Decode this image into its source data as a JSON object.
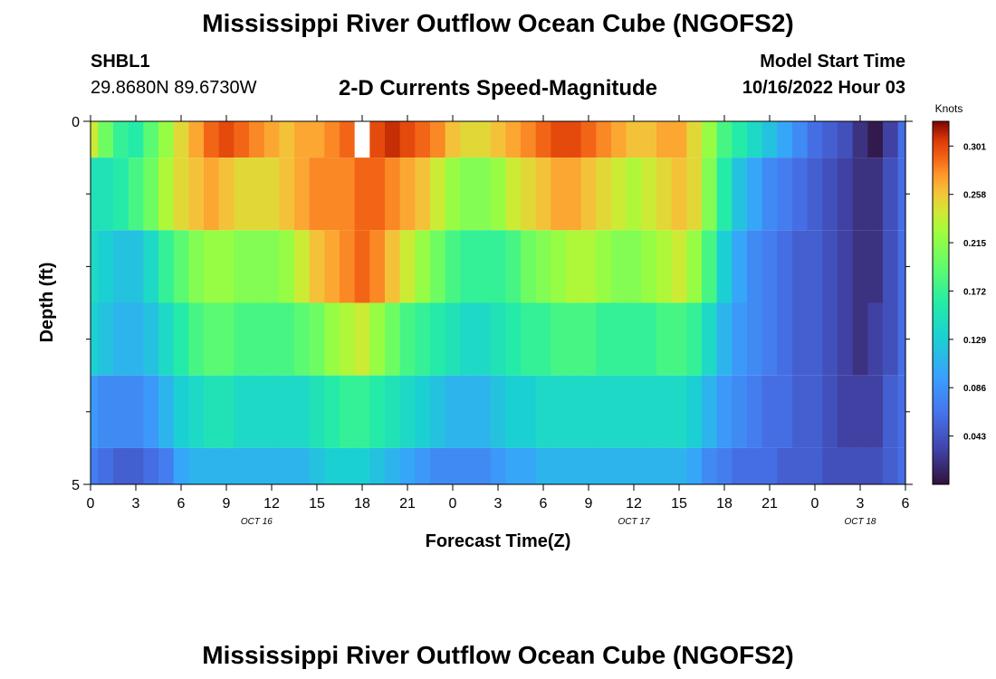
{
  "title": "Mississippi River Outflow Ocean Cube (NGOFS2)",
  "title_repeat": "Mississippi River Outflow Ocean Cube (NGOFS2)",
  "station": {
    "id": "SHBL1",
    "coords": "29.8680N  89.6730W"
  },
  "subtitle": "2-D Currents Speed-Magnitude",
  "model_start": {
    "label": "Model Start Time",
    "value": "10/16/2022 Hour 03"
  },
  "chart_data": {
    "type": "heatmap",
    "xlabel": "Forecast Time(Z)",
    "ylabel": "Depth (ft)",
    "x_tick_labels": [
      "0",
      "3",
      "6",
      "9",
      "12",
      "15",
      "18",
      "21",
      "0",
      "3",
      "6",
      "9",
      "12",
      "15",
      "18",
      "21",
      "0",
      "3",
      "6"
    ],
    "x_range_hours": [
      0,
      54
    ],
    "date_labels": [
      {
        "label": "OCT 16",
        "hour": 11
      },
      {
        "label": "OCT 17",
        "hour": 36
      },
      {
        "label": "OCT 18",
        "hour": 51
      }
    ],
    "y_tick_labels": [
      "0",
      "5"
    ],
    "ylim": [
      0,
      5
    ],
    "depth_bands": [
      0,
      0.5,
      1.5,
      2.5,
      3.5,
      4.5,
      5
    ],
    "colorbar": {
      "title": "Knots",
      "ticks": [
        "0.301",
        "0.258",
        "0.215",
        "0.172",
        "0.129",
        "0.086",
        "0.043"
      ],
      "range": [
        0,
        0.323
      ]
    },
    "time_hours": [
      0,
      1,
      2,
      3,
      4,
      5,
      6,
      7,
      8,
      9,
      10,
      11,
      12,
      13,
      14,
      15,
      16,
      17,
      18,
      19,
      20,
      21,
      22,
      23,
      24,
      25,
      26,
      27,
      28,
      29,
      30,
      31,
      32,
      33,
      34,
      35,
      36,
      37,
      38,
      39,
      40,
      41,
      42,
      43,
      44,
      45,
      46,
      47,
      48,
      49,
      50,
      51,
      52,
      53,
      54
    ],
    "speed_knots": [
      [
        0.24,
        0.2,
        0.17,
        0.16,
        0.19,
        0.22,
        0.25,
        0.27,
        0.29,
        0.3,
        0.29,
        0.28,
        0.27,
        0.26,
        0.27,
        0.27,
        0.28,
        0.29,
        null,
        0.3,
        0.31,
        0.3,
        0.29,
        0.28,
        0.26,
        0.25,
        0.25,
        0.26,
        0.27,
        0.28,
        0.29,
        0.3,
        0.3,
        0.29,
        0.28,
        0.27,
        0.26,
        0.26,
        0.27,
        0.27,
        0.25,
        0.22,
        0.18,
        0.16,
        0.14,
        0.12,
        0.1,
        0.08,
        0.06,
        0.05,
        0.04,
        0.02,
        0.005,
        0.03,
        0.06
      ],
      [
        0.15,
        0.15,
        0.16,
        0.18,
        0.2,
        0.23,
        0.25,
        0.26,
        0.27,
        0.26,
        0.25,
        0.25,
        0.25,
        0.26,
        0.27,
        0.28,
        0.28,
        0.28,
        0.29,
        0.29,
        0.28,
        0.27,
        0.26,
        0.24,
        0.22,
        0.21,
        0.21,
        0.22,
        0.24,
        0.25,
        0.26,
        0.27,
        0.27,
        0.26,
        0.25,
        0.24,
        0.23,
        0.24,
        0.25,
        0.26,
        0.25,
        0.21,
        0.16,
        0.12,
        0.1,
        0.08,
        0.07,
        0.06,
        0.05,
        0.04,
        0.03,
        0.02,
        0.02,
        0.04,
        0.06
      ],
      [
        0.14,
        0.13,
        0.12,
        0.12,
        0.14,
        0.17,
        0.19,
        0.21,
        0.22,
        0.22,
        0.21,
        0.21,
        0.21,
        0.22,
        0.24,
        0.26,
        0.27,
        0.28,
        0.29,
        0.28,
        0.26,
        0.24,
        0.22,
        0.2,
        0.18,
        0.17,
        0.17,
        0.17,
        0.18,
        0.2,
        0.21,
        0.22,
        0.23,
        0.23,
        0.22,
        0.21,
        0.21,
        0.22,
        0.23,
        0.24,
        0.22,
        0.18,
        0.13,
        0.1,
        0.08,
        0.07,
        0.06,
        0.05,
        0.05,
        0.04,
        0.03,
        0.02,
        0.02,
        0.04,
        0.06
      ],
      [
        0.13,
        0.12,
        0.11,
        0.11,
        0.12,
        0.14,
        0.16,
        0.18,
        0.19,
        0.19,
        0.18,
        0.18,
        0.18,
        0.18,
        0.19,
        0.2,
        0.22,
        0.23,
        0.24,
        0.22,
        0.2,
        0.18,
        0.17,
        0.16,
        0.15,
        0.14,
        0.14,
        0.15,
        0.16,
        0.17,
        0.17,
        0.18,
        0.18,
        0.18,
        0.17,
        0.17,
        0.17,
        0.17,
        0.18,
        0.18,
        0.17,
        0.14,
        0.11,
        0.09,
        0.08,
        0.07,
        0.06,
        0.05,
        0.05,
        0.04,
        0.03,
        0.02,
        0.03,
        0.04,
        0.06
      ],
      [
        0.09,
        0.08,
        0.08,
        0.08,
        0.09,
        0.11,
        0.13,
        0.14,
        0.15,
        0.15,
        0.14,
        0.14,
        0.14,
        0.14,
        0.14,
        0.15,
        0.16,
        0.17,
        0.17,
        0.16,
        0.15,
        0.14,
        0.13,
        0.12,
        0.11,
        0.11,
        0.11,
        0.12,
        0.13,
        0.13,
        0.14,
        0.14,
        0.14,
        0.14,
        0.14,
        0.14,
        0.14,
        0.14,
        0.14,
        0.14,
        0.13,
        0.11,
        0.09,
        0.08,
        0.07,
        0.06,
        0.06,
        0.05,
        0.05,
        0.04,
        0.03,
        0.03,
        0.03,
        0.05,
        0.06
      ],
      [
        0.07,
        0.06,
        0.05,
        0.05,
        0.06,
        0.07,
        0.1,
        0.11,
        0.11,
        0.11,
        0.11,
        0.11,
        0.11,
        0.11,
        0.11,
        0.12,
        0.13,
        0.13,
        0.13,
        0.12,
        0.11,
        0.1,
        0.09,
        0.08,
        0.08,
        0.08,
        0.08,
        0.09,
        0.1,
        0.1,
        0.11,
        0.11,
        0.11,
        0.11,
        0.11,
        0.11,
        0.11,
        0.11,
        0.11,
        0.11,
        0.1,
        0.08,
        0.07,
        0.06,
        0.06,
        0.06,
        0.05,
        0.05,
        0.05,
        0.04,
        0.04,
        0.04,
        0.04,
        0.05,
        0.06
      ]
    ]
  }
}
